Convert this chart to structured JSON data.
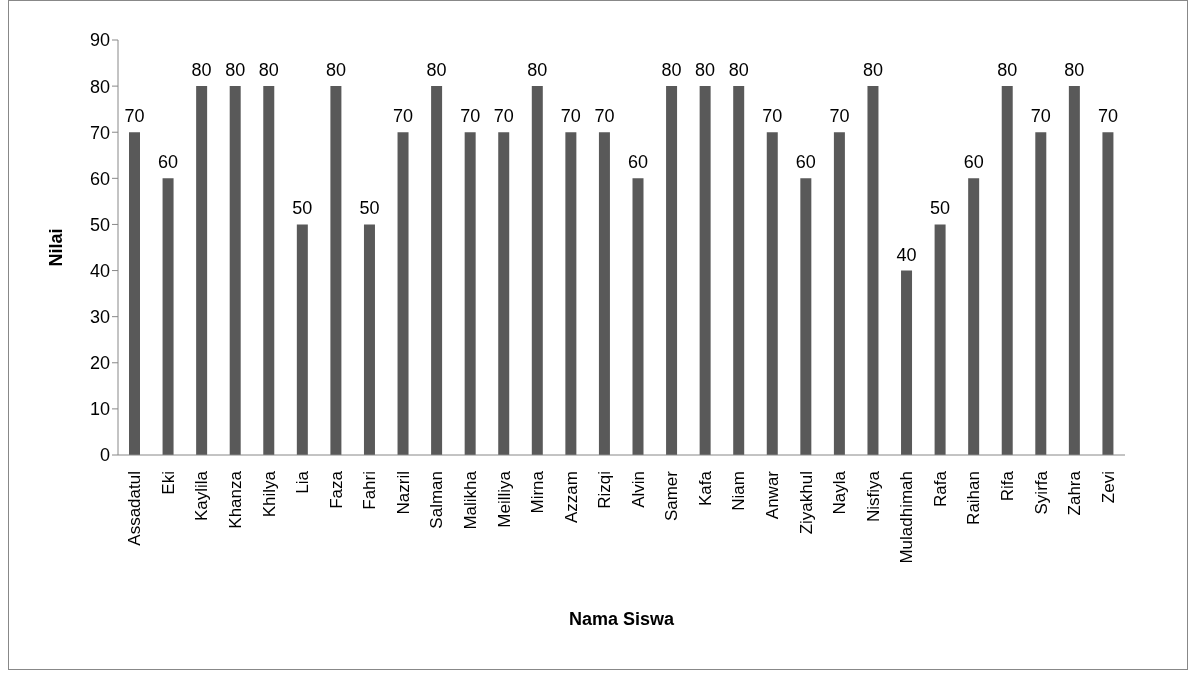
{
  "chart_data": {
    "type": "bar",
    "xlabel": "Nama Siswa",
    "ylabel": "Nilai",
    "categories": [
      "Assadatul",
      "Eki",
      "Kaylila",
      "Khanza",
      "Khilya",
      "Lia",
      "Faza",
      "Fahri",
      "Nazril",
      "Salman",
      "Malikha",
      "Meilliya",
      "Mirna",
      "Azzam",
      "Rizqi",
      "Alvin",
      "Samer",
      "Kafa",
      "Niam",
      "Anwar",
      "Ziyakhul",
      "Nayla",
      "Nisfiya",
      "Muladhimah",
      "Rafa",
      "Raihan",
      "Rifa",
      "Syirfa",
      "Zahra",
      "Zevi"
    ],
    "values": [
      70,
      60,
      80,
      80,
      80,
      50,
      80,
      50,
      70,
      80,
      70,
      70,
      80,
      70,
      70,
      60,
      80,
      80,
      80,
      70,
      60,
      70,
      80,
      40,
      50,
      60,
      80,
      70,
      80,
      70
    ],
    "color": "#595959",
    "ylim": [
      0,
      90
    ],
    "yticks": [
      0,
      10,
      20,
      30,
      40,
      50,
      60,
      70,
      80,
      90
    ],
    "data_labels": true,
    "grid": false,
    "legend": false
  }
}
